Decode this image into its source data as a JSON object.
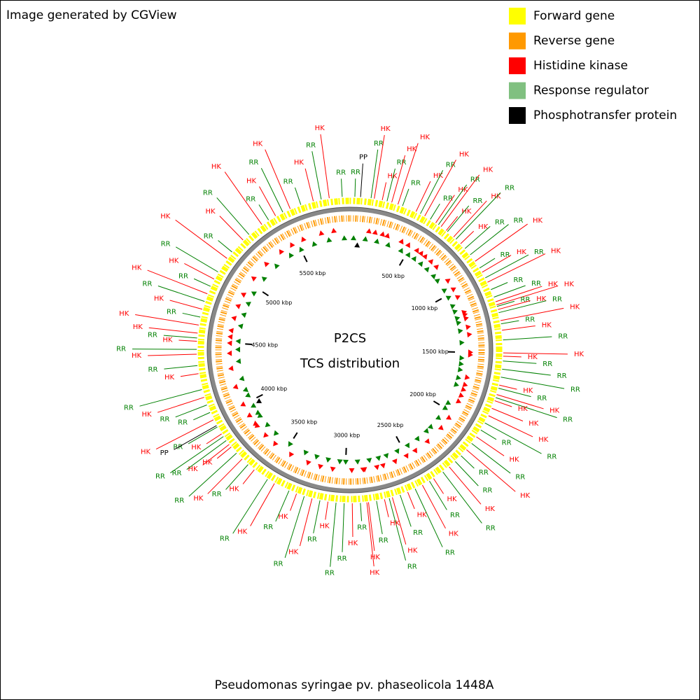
{
  "header": {
    "title": "Image generated by CGView"
  },
  "legend": [
    {
      "label": "Forward gene",
      "color": "#ffff00"
    },
    {
      "label": "Reverse gene",
      "color": "#ff9900"
    },
    {
      "label": "Histidine kinase",
      "color": "#ff0000"
    },
    {
      "label": "Response regulator",
      "color": "#80c080"
    },
    {
      "label": "Phosphotransfer protein",
      "color": "#000000"
    }
  ],
  "center": {
    "title": "P2CS",
    "subtitle": "TCS distribution"
  },
  "map": {
    "length_kbp": 5928,
    "ticks": [
      {
        "value": 500,
        "label": "500 kbp"
      },
      {
        "value": 1000,
        "label": "1000 kbp"
      },
      {
        "value": 1500,
        "label": "1500 kbp"
      },
      {
        "value": 2000,
        "label": "2000 kbp"
      },
      {
        "value": 2500,
        "label": "2500 kbp"
      },
      {
        "value": 3000,
        "label": "3000 kbp"
      },
      {
        "value": 3500,
        "label": "3500 kbp"
      },
      {
        "value": 4000,
        "label": "4000 kbp"
      },
      {
        "value": 4500,
        "label": "4500 kbp"
      },
      {
        "value": 5000,
        "label": "5000 kbp"
      },
      {
        "value": 5500,
        "label": "5500 kbp"
      }
    ],
    "feature_groups": [
      {
        "label": "HK",
        "color": "#ff0000",
        "positions_kbp": [
          150,
          200,
          260,
          300,
          420,
          480,
          560,
          600,
          640,
          700,
          760,
          900,
          980,
          1050,
          1180,
          1200,
          1230,
          1300,
          1360,
          1500,
          1520,
          1700,
          1760,
          1800,
          1850,
          1900,
          2050,
          2150,
          2300,
          2420,
          2500,
          2600,
          2700,
          2750,
          2850,
          2860,
          2950,
          3100,
          3200,
          3300,
          3450,
          3600,
          3700,
          3800,
          3820,
          3900,
          4000,
          4150,
          4300,
          4420,
          4500,
          4550,
          4600,
          4700,
          4800,
          4900,
          5050,
          5200,
          5350,
          5450,
          5550,
          5700,
          5800
        ]
      },
      {
        "label": "RR",
        "color": "#008000",
        "positions_kbp": [
          30,
          130,
          230,
          330,
          450,
          520,
          580,
          650,
          720,
          800,
          850,
          950,
          1020,
          1100,
          1150,
          1210,
          1250,
          1320,
          1420,
          1550,
          1600,
          1650,
          1720,
          1780,
          1950,
          2000,
          2100,
          2200,
          2250,
          2350,
          2450,
          2550,
          2650,
          2720,
          2800,
          2900,
          3000,
          3050,
          3150,
          3250,
          3350,
          3500,
          3650,
          3750,
          3850,
          3880,
          3950,
          4050,
          4100,
          4200,
          4350,
          4450,
          4520,
          4650,
          4750,
          4850,
          4950,
          5100,
          5250,
          5400,
          5500,
          5620,
          5750,
          5880
        ]
      },
      {
        "label": "PP",
        "color": "#000000",
        "positions_kbp": [
          65,
          3960
        ]
      }
    ]
  },
  "footer": {
    "caption": "Pseudomonas syringae pv. phaseolicola 1448A"
  }
}
